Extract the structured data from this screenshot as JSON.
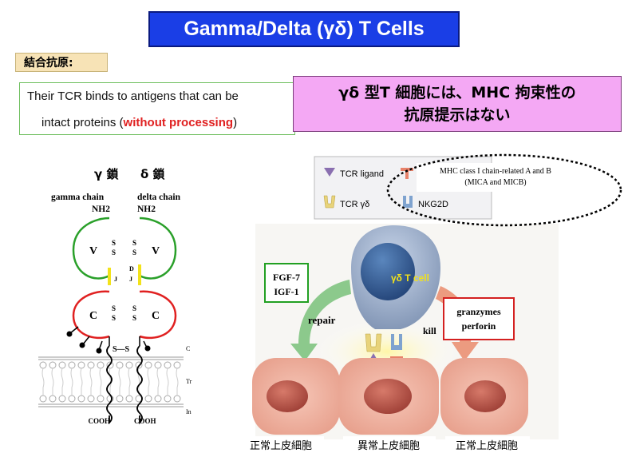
{
  "title": "Gamma/Delta (γδ) T Cells",
  "binding_label": "結合抗原:",
  "tcr_description": {
    "line1": "Their TCR binds to antigens that can be",
    "line2_prefix": "intact proteins (",
    "line2_red": "without processing",
    "line2_suffix": ")"
  },
  "mhc_note": {
    "line1": "γδ 型T 細胞には、MHC 拘束性の",
    "line2": "抗原提示はない"
  },
  "left_diagram": {
    "gamma_header": "γ 鎖",
    "delta_header": "δ 鎖",
    "gamma_chain_label": "gamma chain",
    "delta_chain_label": "delta chain",
    "nh2": "NH2",
    "v_label": "V",
    "c_label": "C",
    "ss_label": "S S",
    "j_label": "J",
    "d_label": "D",
    "s_s_link": "S—S",
    "cooh": "COOH",
    "edge_c": "C",
    "edge_tr": "Tr",
    "edge_in": "In",
    "colors": {
      "v_loop": "#2aa02a",
      "c_loop": "#e02020",
      "j_segment": "#f2e21a"
    }
  },
  "right_diagram": {
    "legend": {
      "tcr_ligand": "TCR ligand",
      "tcr_gd": "TCR γδ",
      "mic": "MIC",
      "nkg2d": "NKG2D"
    },
    "mhc_callout_line1": "MHC class I chain-related A and B",
    "mhc_callout_line2": "(MICA and MICB)",
    "cell_label": "γδ T cell",
    "growth_factors": [
      "FGF-7",
      "IGF-1"
    ],
    "repair_label": "repair",
    "kill_label": "kill",
    "effectors": [
      "granzymes",
      "perforin"
    ],
    "cells": [
      "正常上皮細胞",
      "異常上皮細胞",
      "正常上皮細胞"
    ]
  }
}
